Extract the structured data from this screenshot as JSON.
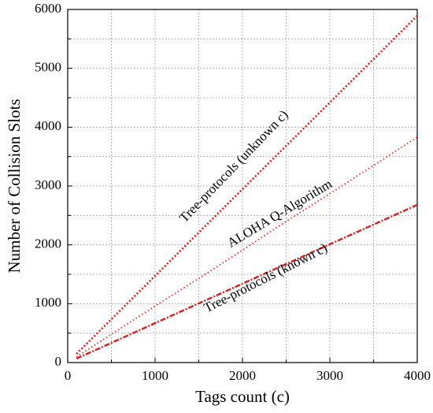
{
  "chart_data": {
    "type": "line",
    "xlabel": "Tags count (c)",
    "ylabel": "Number of Collision Slots",
    "x": [
      100,
      500,
      1000,
      1500,
      2000,
      2500,
      3000,
      3500,
      4000
    ],
    "series": [
      {
        "name": "Tree-protocols (unknown c)",
        "color": "#d42020",
        "dash": "2,2.5",
        "width": 2.6,
        "values": [
          147,
          737,
          1473,
          2210,
          2946,
          3683,
          4419,
          5156,
          5893
        ]
      },
      {
        "name": "ALOHA Q-Algorithm",
        "color": "#e02828",
        "dash": "1.5,3",
        "width": 1.8,
        "values": [
          95,
          480,
          960,
          1430,
          1910,
          2400,
          2870,
          3350,
          3830
        ]
      },
      {
        "name": "Tree-protocols (known c)",
        "color": "#d42020",
        "dash": "7,2,2,2",
        "width": 2.4,
        "values": [
          67,
          335,
          670,
          1005,
          1340,
          1675,
          2010,
          2345,
          2680
        ]
      }
    ],
    "xlim": [
      0,
      4000
    ],
    "xticks": [
      0,
      1000,
      2000,
      3000,
      4000
    ],
    "ylim": [
      0,
      6000
    ],
    "yticks": [
      0,
      1000,
      2000,
      3000,
      4000,
      5000,
      6000
    ],
    "x_minor_ticks": [
      500,
      1500,
      2500,
      3500
    ],
    "y_minor_ticks": [
      500,
      1500,
      2500,
      3500,
      4500,
      5500
    ],
    "grid": true
  }
}
